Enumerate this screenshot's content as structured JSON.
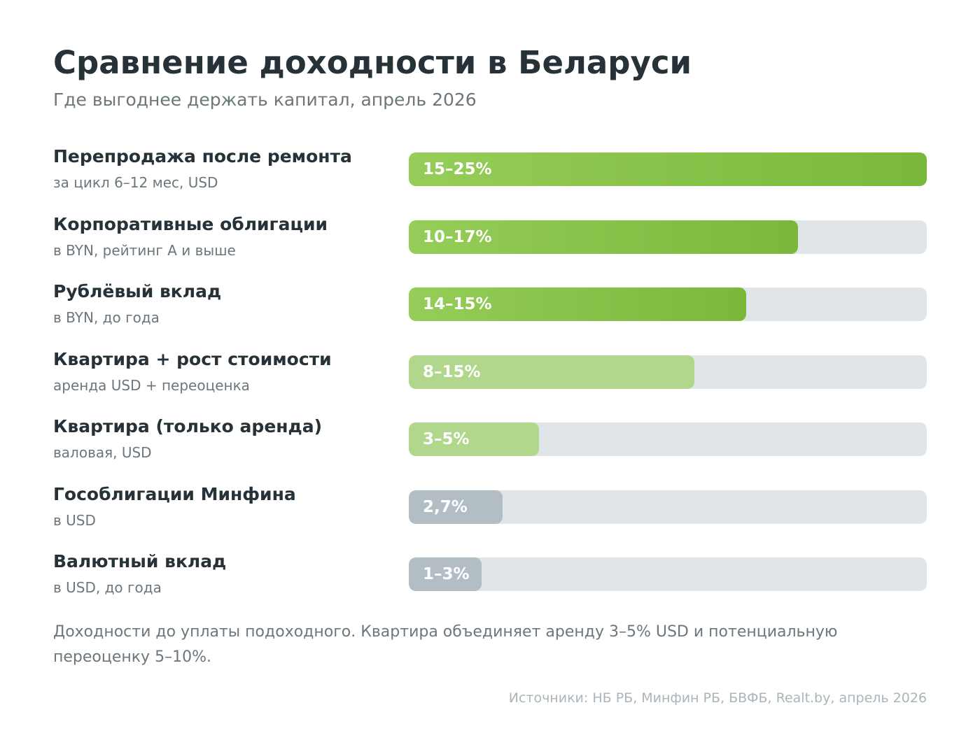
{
  "header": {
    "title": "Сравнение доходности в Беларуси",
    "subtitle": "Где выгоднее держать капитал, апрель 2026"
  },
  "colors": {
    "strong_start": "#95cd58",
    "strong_end": "#7ab83c",
    "light": "#b0d78c",
    "grey": "#b2bec3",
    "track": "#dfe5e8"
  },
  "chart_data": {
    "type": "bar",
    "orientation": "horizontal",
    "title": "Сравнение доходности в Беларуси",
    "subtitle": "Где выгоднее держать капитал, апрель 2026",
    "unit": "%",
    "xlim": [
      0,
      25
    ],
    "grid": false,
    "categories": [
      {
        "label": "Перепродажа после ремонта",
        "note": "за цикл 6–12 мес, USD",
        "value_label": "15–25%",
        "low": 15,
        "high": 25,
        "style": "strong"
      },
      {
        "label": "Корпоративные облигации",
        "note": "в BYN, рейтинг A и выше",
        "value_label": "10–17%",
        "low": 10,
        "high": 17,
        "style": "strong"
      },
      {
        "label": "Рублёвый вклад",
        "note": "в BYN, до года",
        "value_label": "14–15%",
        "low": 14,
        "high": 15,
        "style": "strong"
      },
      {
        "label": "Квартира + рост стоимости",
        "note": "аренда USD + переоценка",
        "value_label": "8–15%",
        "low": 8,
        "high": 15,
        "style": "light"
      },
      {
        "label": "Квартира (только аренда)",
        "note": "валовая, USD",
        "value_label": "3–5%",
        "low": 3,
        "high": 5,
        "style": "light"
      },
      {
        "label": "Гособлигации Минфина",
        "note": "в USD",
        "value_label": "2,7%",
        "low": 2.7,
        "high": 2.7,
        "style": "grey"
      },
      {
        "label": "Валютный вклад",
        "note": "в USD, до года",
        "value_label": "1–3%",
        "low": 1,
        "high": 3,
        "style": "grey"
      }
    ],
    "bar_fill_fraction": [
      1.0,
      0.752,
      0.651,
      0.551,
      0.251,
      0.181,
      0.141
    ]
  },
  "footer": {
    "note": "Доходности до уплаты подоходного. Квартира объединяет аренду 3–5% USD и потенциальную переоценку 5–10%.",
    "source": "Источники: НБ РБ, Минфин РБ, БВФБ, Realt.by, апрель 2026"
  }
}
